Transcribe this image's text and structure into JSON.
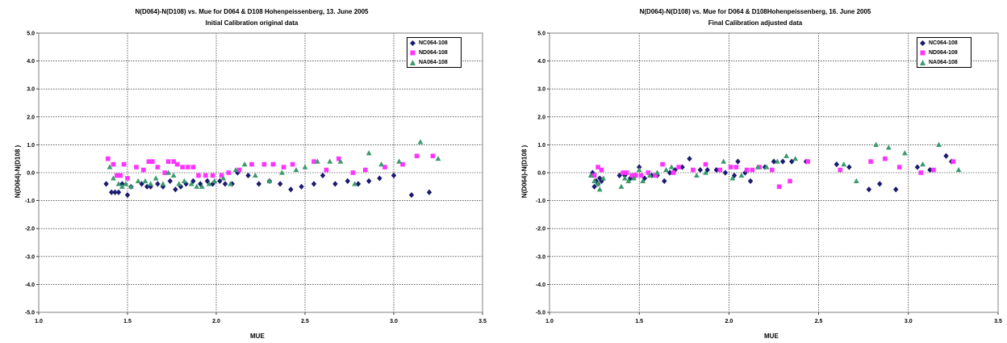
{
  "chart_data": [
    {
      "type": "scatter",
      "title": "N(D064)-N(D108) vs. Mue for D064 & D108 Hohenpeissenberg, 13. June 2005",
      "subtitle": "Initial Calibration original data",
      "xlabel": "MUE",
      "ylabel": "N(D064)-N(D108 )",
      "xlim": [
        1.0,
        3.5
      ],
      "ylim": [
        -5.0,
        5.0
      ],
      "x_ticks": [
        "1.0",
        "1.5",
        "2.0",
        "2.5",
        "3.0",
        "3.5"
      ],
      "y_ticks": [
        "5.0",
        "4.0",
        "3.0",
        "2.0",
        "1.0",
        "0.0",
        "-1.0",
        "-2.0",
        "-3.0",
        "-4.0",
        "-5.0"
      ],
      "grid": true,
      "legend_position": "top-right",
      "series": [
        {
          "name": "NC064-108",
          "color": "#1a1a6e",
          "marker": "diamond",
          "points": [
            [
              1.38,
              -0.4
            ],
            [
              1.41,
              -0.7
            ],
            [
              1.43,
              -0.7
            ],
            [
              1.45,
              -0.7
            ],
            [
              1.47,
              -0.4
            ],
            [
              1.5,
              -0.8
            ],
            [
              1.52,
              -0.5
            ],
            [
              1.58,
              -0.4
            ],
            [
              1.61,
              -0.5
            ],
            [
              1.63,
              -0.5
            ],
            [
              1.67,
              -0.4
            ],
            [
              1.7,
              -0.5
            ],
            [
              1.74,
              -0.3
            ],
            [
              1.77,
              -0.6
            ],
            [
              1.8,
              -0.5
            ],
            [
              1.83,
              -0.4
            ],
            [
              1.87,
              -0.3
            ],
            [
              1.91,
              -0.4
            ],
            [
              1.95,
              -0.3
            ],
            [
              1.98,
              -0.4
            ],
            [
              2.02,
              -0.3
            ],
            [
              2.05,
              -0.4
            ],
            [
              2.09,
              -0.4
            ],
            [
              2.12,
              0.0
            ],
            [
              2.18,
              -0.1
            ],
            [
              2.24,
              -0.4
            ],
            [
              2.3,
              -0.3
            ],
            [
              2.36,
              -0.4
            ],
            [
              2.42,
              -0.6
            ],
            [
              2.48,
              -0.5
            ],
            [
              2.55,
              -0.4
            ],
            [
              2.6,
              -0.1
            ],
            [
              2.67,
              -0.4
            ],
            [
              2.74,
              -0.3
            ],
            [
              2.8,
              -0.4
            ],
            [
              2.86,
              -0.3
            ],
            [
              2.92,
              -0.2
            ],
            [
              3.0,
              -0.1
            ],
            [
              3.1,
              -0.8
            ],
            [
              3.2,
              -0.7
            ]
          ]
        },
        {
          "name": "ND064-108",
          "color": "#ff33ff",
          "marker": "square",
          "points": [
            [
              1.39,
              0.5
            ],
            [
              1.42,
              0.3
            ],
            [
              1.44,
              -0.1
            ],
            [
              1.46,
              -0.1
            ],
            [
              1.48,
              0.3
            ],
            [
              1.5,
              -0.2
            ],
            [
              1.55,
              0.2
            ],
            [
              1.59,
              0.1
            ],
            [
              1.62,
              0.4
            ],
            [
              1.64,
              0.4
            ],
            [
              1.67,
              0.2
            ],
            [
              1.71,
              0.0
            ],
            [
              1.73,
              0.4
            ],
            [
              1.76,
              0.4
            ],
            [
              1.78,
              0.3
            ],
            [
              1.81,
              0.2
            ],
            [
              1.84,
              0.2
            ],
            [
              1.87,
              0.2
            ],
            [
              1.9,
              -0.1
            ],
            [
              1.94,
              -0.1
            ],
            [
              1.98,
              -0.1
            ],
            [
              2.03,
              -0.1
            ],
            [
              2.07,
              0.0
            ],
            [
              2.13,
              0.1
            ],
            [
              2.2,
              0.3
            ],
            [
              2.27,
              0.3
            ],
            [
              2.32,
              0.3
            ],
            [
              2.38,
              0.2
            ],
            [
              2.43,
              0.3
            ],
            [
              2.55,
              0.4
            ],
            [
              2.62,
              0.1
            ],
            [
              2.69,
              0.5
            ],
            [
              2.77,
              0.0
            ],
            [
              2.84,
              0.1
            ],
            [
              2.95,
              0.2
            ],
            [
              3.05,
              0.3
            ],
            [
              3.13,
              0.6
            ],
            [
              3.22,
              0.6
            ]
          ]
        },
        {
          "name": "NA064-108",
          "color": "#3a9a6e",
          "marker": "triangle",
          "points": [
            [
              1.4,
              0.2
            ],
            [
              1.42,
              -0.2
            ],
            [
              1.45,
              -0.4
            ],
            [
              1.47,
              -0.5
            ],
            [
              1.49,
              -0.4
            ],
            [
              1.52,
              -0.5
            ],
            [
              1.56,
              -0.3
            ],
            [
              1.6,
              -0.3
            ],
            [
              1.63,
              -0.4
            ],
            [
              1.66,
              -0.2
            ],
            [
              1.7,
              -0.4
            ],
            [
              1.73,
              0.0
            ],
            [
              1.76,
              -0.1
            ],
            [
              1.79,
              -0.4
            ],
            [
              1.82,
              -0.3
            ],
            [
              1.86,
              -0.4
            ],
            [
              1.89,
              -0.5
            ],
            [
              1.92,
              -0.5
            ],
            [
              1.96,
              -0.4
            ],
            [
              1.99,
              -0.3
            ],
            [
              2.04,
              -0.2
            ],
            [
              2.08,
              -0.4
            ],
            [
              2.11,
              0.1
            ],
            [
              2.16,
              0.3
            ],
            [
              2.22,
              -0.1
            ],
            [
              2.3,
              -0.3
            ],
            [
              2.37,
              0.0
            ],
            [
              2.45,
              0.1
            ],
            [
              2.5,
              0.2
            ],
            [
              2.57,
              0.4
            ],
            [
              2.64,
              0.4
            ],
            [
              2.7,
              0.4
            ],
            [
              2.78,
              -0.4
            ],
            [
              2.86,
              0.7
            ],
            [
              2.93,
              0.3
            ],
            [
              3.03,
              0.4
            ],
            [
              3.15,
              1.1
            ],
            [
              3.25,
              0.5
            ]
          ]
        }
      ]
    },
    {
      "type": "scatter",
      "title": "N(D064)-N(D108) vs. Mue for D064 & D108Hohenpeissenberg, 16. June 2005",
      "subtitle": "Final Calibration adjusted data",
      "xlabel": "MUE",
      "ylabel": "N(D064)-N(D108 )",
      "xlim": [
        1.0,
        3.5
      ],
      "ylim": [
        -5.0,
        5.0
      ],
      "x_ticks": [
        "1.0",
        "1.5",
        "2.0",
        "2.5",
        "3.0",
        "3.5"
      ],
      "y_ticks": [
        "5.0",
        "4.0",
        "3.0",
        "2.0",
        "1.0",
        "0.0",
        "-1.0",
        "-2.0",
        "-3.0",
        "-4.0",
        "-5.0"
      ],
      "grid": true,
      "legend_position": "top-right",
      "series": [
        {
          "name": "NC064-108",
          "color": "#1a1a6e",
          "marker": "diamond",
          "points": [
            [
              1.24,
              0.0
            ],
            [
              1.25,
              -0.5
            ],
            [
              1.26,
              -0.3
            ],
            [
              1.27,
              -0.4
            ],
            [
              1.28,
              -0.2
            ],
            [
              1.29,
              -0.3
            ],
            [
              1.39,
              -0.1
            ],
            [
              1.42,
              -0.1
            ],
            [
              1.45,
              -0.2
            ],
            [
              1.48,
              -0.1
            ],
            [
              1.5,
              0.2
            ],
            [
              1.53,
              -0.2
            ],
            [
              1.57,
              -0.1
            ],
            [
              1.6,
              -0.1
            ],
            [
              1.64,
              -0.3
            ],
            [
              1.67,
              0.0
            ],
            [
              1.7,
              0.1
            ],
            [
              1.74,
              0.2
            ],
            [
              1.78,
              0.5
            ],
            [
              1.84,
              0.1
            ],
            [
              1.88,
              0.1
            ],
            [
              1.93,
              0.1
            ],
            [
              1.98,
              0.0
            ],
            [
              2.03,
              -0.1
            ],
            [
              2.05,
              0.4
            ],
            [
              2.09,
              0.0
            ],
            [
              2.12,
              -0.3
            ],
            [
              2.2,
              0.2
            ],
            [
              2.25,
              0.4
            ],
            [
              2.3,
              0.4
            ],
            [
              2.35,
              0.4
            ],
            [
              2.43,
              0.4
            ],
            [
              2.6,
              0.3
            ],
            [
              2.67,
              0.2
            ],
            [
              2.78,
              -0.6
            ],
            [
              2.84,
              -0.4
            ],
            [
              2.93,
              -0.6
            ],
            [
              3.05,
              0.2
            ],
            [
              3.12,
              0.1
            ],
            [
              3.21,
              0.6
            ],
            [
              3.24,
              0.4
            ]
          ]
        },
        {
          "name": "ND064-108",
          "color": "#ff33ff",
          "marker": "square",
          "points": [
            [
              1.25,
              -0.1
            ],
            [
              1.27,
              0.2
            ],
            [
              1.29,
              0.1
            ],
            [
              1.41,
              0.0
            ],
            [
              1.43,
              0.0
            ],
            [
              1.46,
              -0.1
            ],
            [
              1.48,
              -0.1
            ],
            [
              1.51,
              -0.1
            ],
            [
              1.55,
              0.0
            ],
            [
              1.59,
              -0.1
            ],
            [
              1.63,
              0.3
            ],
            [
              1.69,
              0.0
            ],
            [
              1.72,
              0.2
            ],
            [
              1.8,
              0.1
            ],
            [
              1.87,
              0.3
            ],
            [
              1.95,
              0.1
            ],
            [
              2.01,
              0.2
            ],
            [
              2.04,
              0.2
            ],
            [
              2.1,
              0.1
            ],
            [
              2.13,
              0.1
            ],
            [
              2.17,
              0.2
            ],
            [
              2.24,
              0.1
            ],
            [
              2.28,
              -0.5
            ],
            [
              2.34,
              -0.3
            ],
            [
              2.44,
              0.4
            ],
            [
              2.62,
              0.1
            ],
            [
              2.79,
              0.4
            ],
            [
              2.87,
              0.5
            ],
            [
              2.95,
              0.2
            ],
            [
              3.07,
              0.0
            ],
            [
              3.14,
              0.1
            ],
            [
              3.25,
              0.4
            ]
          ]
        },
        {
          "name": "NA064-108",
          "color": "#3a9a6e",
          "marker": "triangle",
          "points": [
            [
              1.23,
              -0.1
            ],
            [
              1.25,
              -0.3
            ],
            [
              1.27,
              -0.4
            ],
            [
              1.28,
              -0.6
            ],
            [
              1.3,
              -0.2
            ],
            [
              1.4,
              -0.5
            ],
            [
              1.42,
              -0.2
            ],
            [
              1.44,
              -0.3
            ],
            [
              1.47,
              -0.2
            ],
            [
              1.5,
              0.1
            ],
            [
              1.52,
              -0.3
            ],
            [
              1.56,
              -0.1
            ],
            [
              1.6,
              0.0
            ],
            [
              1.65,
              0.1
            ],
            [
              1.68,
              0.2
            ],
            [
              1.82,
              -0.1
            ],
            [
              1.87,
              0.0
            ],
            [
              1.97,
              0.4
            ],
            [
              2.02,
              -0.2
            ],
            [
              2.07,
              -0.1
            ],
            [
              2.16,
              0.2
            ],
            [
              2.21,
              0.2
            ],
            [
              2.27,
              0.4
            ],
            [
              2.32,
              0.6
            ],
            [
              2.37,
              0.5
            ],
            [
              2.64,
              0.3
            ],
            [
              2.71,
              -0.3
            ],
            [
              2.82,
              1.0
            ],
            [
              2.89,
              0.9
            ],
            [
              2.98,
              0.7
            ],
            [
              3.08,
              0.3
            ],
            [
              3.17,
              1.0
            ],
            [
              3.28,
              0.1
            ]
          ]
        }
      ]
    }
  ]
}
